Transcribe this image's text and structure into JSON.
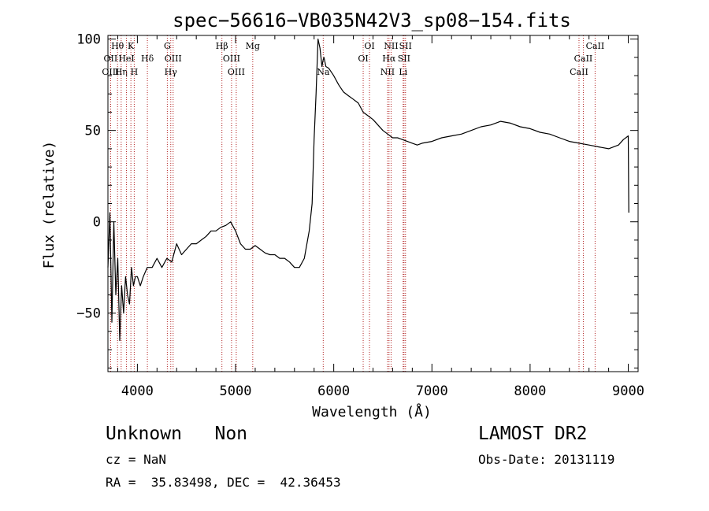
{
  "chart_data": {
    "type": "line",
    "title": "spec−56616−VB035N42V3_sp08−154.fits",
    "xlabel": "Wavelength (Å)",
    "ylabel": "Flux (relative)",
    "xlim": [
      3700,
      9100
    ],
    "ylim": [
      -82,
      102
    ],
    "xticks": [
      4000,
      5000,
      6000,
      7000,
      8000,
      9000
    ],
    "xtick_labels": [
      "4000",
      "5000",
      "6000",
      "7000",
      "8000",
      "9000"
    ],
    "yticks": [
      -50,
      0,
      50,
      100
    ],
    "ytick_labels": [
      "−50",
      "0",
      "50",
      "100"
    ],
    "grid": false,
    "series": [
      {
        "color": "#000000",
        "x": [
          3700,
          3720,
          3740,
          3760,
          3780,
          3800,
          3820,
          3840,
          3860,
          3880,
          3900,
          3920,
          3940,
          3960,
          3980,
          4000,
          4030,
          4060,
          4100,
          4150,
          4200,
          4250,
          4300,
          4350,
          4400,
          4450,
          4500,
          4550,
          4600,
          4650,
          4700,
          4750,
          4800,
          4850,
          4900,
          4950,
          5000,
          5050,
          5100,
          5150,
          5200,
          5250,
          5300,
          5350,
          5400,
          5450,
          5500,
          5550,
          5600,
          5650,
          5700,
          5750,
          5780,
          5800,
          5820,
          5840,
          5860,
          5880,
          5890,
          5900,
          5920,
          5950,
          6000,
          6050,
          6100,
          6150,
          6200,
          6250,
          6300,
          6350,
          6400,
          6450,
          6500,
          6550,
          6600,
          6650,
          6700,
          6750,
          6800,
          6850,
          6900,
          7000,
          7100,
          7200,
          7300,
          7400,
          7500,
          7600,
          7700,
          7800,
          7900,
          8000,
          8100,
          8200,
          8300,
          8400,
          8500,
          8600,
          8700,
          8800,
          8900,
          8950,
          9000,
          9005
        ],
        "y": [
          -25,
          5,
          -55,
          0,
          -40,
          -20,
          -65,
          -35,
          -50,
          -30,
          -40,
          -45,
          -25,
          -35,
          -30,
          -30,
          -35,
          -30,
          -25,
          -25,
          -20,
          -25,
          -20,
          -22,
          -12,
          -18,
          -15,
          -12,
          -12,
          -10,
          -8,
          -5,
          -5,
          -3,
          -2,
          0,
          -5,
          -12,
          -15,
          -15,
          -13,
          -15,
          -17,
          -18,
          -18,
          -20,
          -20,
          -22,
          -25,
          -25,
          -20,
          -5,
          10,
          45,
          70,
          100,
          95,
          85,
          88,
          90,
          85,
          84,
          80,
          75,
          71,
          69,
          67,
          65,
          60,
          58,
          56,
          53,
          50,
          48,
          46,
          46,
          45,
          44,
          43,
          42,
          43,
          44,
          46,
          47,
          48,
          50,
          52,
          53,
          55,
          54,
          52,
          51,
          49,
          48,
          46,
          44,
          43,
          42,
          41,
          40,
          42,
          45,
          47,
          5
        ]
      }
    ],
    "line_markers": [
      {
        "label": "Hθ",
        "x": 3798,
        "row": 1
      },
      {
        "label": "OII",
        "x": 3727,
        "row": 2
      },
      {
        "label": "OIII",
        "x": 3727,
        "row": 3
      },
      {
        "label": "Hη",
        "x": 3835,
        "row": 3
      },
      {
        "label": "HeI",
        "x": 3889,
        "row": 2
      },
      {
        "label": "K",
        "x": 3934,
        "row": 1
      },
      {
        "label": "H",
        "x": 3968,
        "row": 3
      },
      {
        "label": "Hδ",
        "x": 4102,
        "row": 2
      },
      {
        "label": "G",
        "x": 4305,
        "row": 1
      },
      {
        "label": "OIII",
        "x": 4364,
        "row": 2
      },
      {
        "label": "Hγ",
        "x": 4340,
        "row": 3
      },
      {
        "label": "Hβ",
        "x": 4861,
        "row": 1
      },
      {
        "label": "OIII",
        "x": 4959,
        "row": 2
      },
      {
        "label": "OIII",
        "x": 5007,
        "row": 3
      },
      {
        "label": "Mg",
        "x": 5175,
        "row": 1
      },
      {
        "label": "Na",
        "x": 5893,
        "row": 3
      },
      {
        "label": "OI",
        "x": 6364,
        "row": 1
      },
      {
        "label": "OI",
        "x": 6300,
        "row": 2
      },
      {
        "label": "NII",
        "x": 6584,
        "row": 1
      },
      {
        "label": "Hα",
        "x": 6563,
        "row": 2
      },
      {
        "label": "NII",
        "x": 6548,
        "row": 3
      },
      {
        "label": "SII",
        "x": 6731,
        "row": 1
      },
      {
        "label": "SII",
        "x": 6716,
        "row": 2
      },
      {
        "label": "Li",
        "x": 6707,
        "row": 3
      },
      {
        "label": "CaII",
        "x": 8662,
        "row": 1
      },
      {
        "label": "CaII",
        "x": 8542,
        "row": 2
      },
      {
        "label": "CaII",
        "x": 8498,
        "row": 3
      }
    ]
  },
  "footer": {
    "classification": "Unknown   Non",
    "survey": "LAMOST DR2",
    "cz": "cz = NaN",
    "obs_date": "Obs-Date: 20131119",
    "coords": "RA =  35.83498, DEC =  42.36453"
  }
}
